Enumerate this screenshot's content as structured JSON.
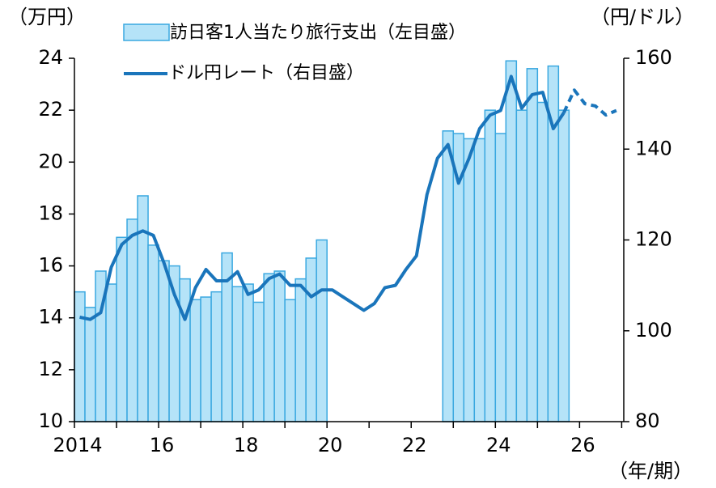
{
  "chart_data": {
    "type": "bar-line",
    "y_unit": "（万円）",
    "y2_unit": "（円/ドル）",
    "x_unit": "（年/期）",
    "x": [
      2014.125,
      2014.375,
      2014.625,
      2014.875,
      2015.125,
      2015.375,
      2015.625,
      2015.875,
      2016.125,
      2016.375,
      2016.625,
      2016.875,
      2017.125,
      2017.375,
      2017.625,
      2017.875,
      2018.125,
      2018.375,
      2018.625,
      2018.875,
      2019.125,
      2019.375,
      2019.625,
      2019.875,
      2020.125,
      2020.375,
      2020.625,
      2020.875,
      2021.125,
      2021.375,
      2021.625,
      2021.875,
      2022.125,
      2022.375,
      2022.625,
      2022.875,
      2023.125,
      2023.375,
      2023.625,
      2023.875,
      2024.125,
      2024.375,
      2024.625,
      2024.875,
      2025.125,
      2025.375,
      2025.625,
      2025.875,
      2026.125,
      2026.375,
      2026.625,
      2026.875
    ],
    "series": [
      {
        "name": "訪日客1人当たり旅行支出（左目盛）",
        "kind": "bar",
        "color": "#b5e3f8",
        "edge": "#3aa8e0",
        "values": [
          15.0,
          14.4,
          15.8,
          15.3,
          17.1,
          17.8,
          18.7,
          16.8,
          16.2,
          16.0,
          15.5,
          14.7,
          14.8,
          15.0,
          16.5,
          15.2,
          15.3,
          14.6,
          15.7,
          15.8,
          14.7,
          15.5,
          16.3,
          17.0,
          null,
          null,
          null,
          null,
          null,
          null,
          null,
          null,
          null,
          null,
          null,
          21.2,
          21.1,
          20.9,
          20.9,
          22.0,
          21.1,
          23.9,
          22.0,
          23.6,
          22.3,
          23.7,
          22.0,
          null,
          null,
          null,
          null,
          null
        ]
      },
      {
        "name": "ドル円レート（右目盛）",
        "kind": "line",
        "axis": "y2",
        "color": "#1a75bb",
        "values": [
          103,
          102.5,
          104,
          114,
          119,
          121,
          122,
          121,
          115,
          108,
          102.5,
          109.5,
          113.5,
          111,
          111,
          113,
          108,
          109,
          111.5,
          112.5,
          110,
          110,
          107.5,
          109,
          109,
          107.5,
          106,
          104.5,
          106,
          109.5,
          110,
          113.5,
          116.5,
          130,
          138,
          141,
          132.5,
          138,
          144.5,
          147.5,
          148.5,
          156,
          149,
          152,
          152.5,
          144.5,
          148,
          null,
          null,
          null,
          null,
          null
        ]
      },
      {
        "kind": "line",
        "axis": "y2",
        "dashed": true,
        "color": "#1a75bb",
        "values": [
          null,
          null,
          null,
          null,
          null,
          null,
          null,
          null,
          null,
          null,
          null,
          null,
          null,
          null,
          null,
          null,
          null,
          null,
          null,
          null,
          null,
          null,
          null,
          null,
          null,
          null,
          null,
          null,
          null,
          null,
          null,
          null,
          null,
          null,
          null,
          null,
          null,
          null,
          null,
          null,
          null,
          null,
          null,
          null,
          null,
          null,
          148,
          153,
          150,
          149.5,
          147.5,
          148.5
        ]
      }
    ],
    "xlim": [
      2014,
      2027.05
    ],
    "xticks": [
      {
        "value": 2014,
        "label": "2014"
      },
      {
        "value": 2016,
        "label": "16"
      },
      {
        "value": 2018,
        "label": "18"
      },
      {
        "value": 2020,
        "label": "20"
      },
      {
        "value": 2022,
        "label": "22"
      },
      {
        "value": 2024,
        "label": "24"
      },
      {
        "value": 2026,
        "label": "26"
      }
    ],
    "xminor": [
      2015,
      2017,
      2019,
      2021,
      2023,
      2025,
      2027
    ],
    "ylim": [
      10,
      24
    ],
    "yticks": [
      10,
      12,
      14,
      16,
      18,
      20,
      22,
      24
    ],
    "y2lim": [
      80,
      160
    ],
    "y2ticks": [
      80,
      100,
      120,
      140,
      160
    ]
  }
}
